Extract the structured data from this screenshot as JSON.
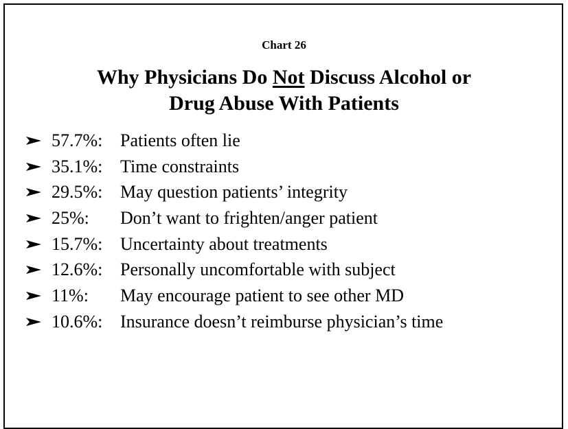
{
  "label": "Chart 26",
  "title": {
    "parts": [
      "Why Physicians Do",
      "Not",
      "Discuss Alcohol or",
      "Drug Abuse With Patients"
    ]
  },
  "items": [
    {
      "percent": "57.7%:",
      "text": "Patients often lie"
    },
    {
      "percent": "35.1%:",
      "text": "Time constraints"
    },
    {
      "percent": "29.5%:",
      "text": "May question patients’ integrity"
    },
    {
      "percent": "25%:",
      "text": "Don’t want to frighten/anger patient"
    },
    {
      "percent": "15.7%:",
      "text": "Uncertainty about treatments"
    },
    {
      "percent": "12.6%:",
      "text": "Personally uncomfortable with subject"
    },
    {
      "percent": "11%:",
      "text": "May encourage patient to see other MD"
    },
    {
      "percent": "10.6%:",
      "text": "Insurance doesn’t reimburse physician’s time"
    }
  ]
}
